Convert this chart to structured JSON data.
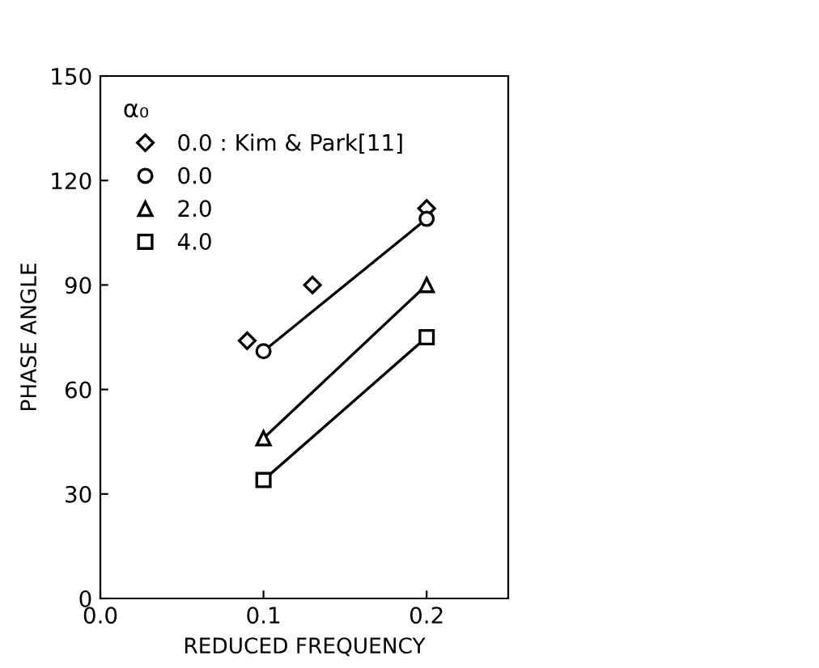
{
  "chart_data": {
    "type": "line",
    "xlabel": "REDUCED FREQUENCY",
    "ylabel": "PHASE ANGLE",
    "legend_title": "α₀",
    "legend": "top left",
    "grid": false,
    "xlim": [
      0.0,
      0.25
    ],
    "xticks": [
      {
        "value": 0.0,
        "label": "0.0"
      },
      {
        "value": 0.1,
        "label": "0.1"
      },
      {
        "value": 0.2,
        "label": "0.2"
      }
    ],
    "ylim": [
      0,
      150
    ],
    "yticks": [
      0,
      30,
      60,
      90,
      120,
      150
    ],
    "series": [
      {
        "name": "0.0 : Kim & Park[11]",
        "type": "scatter",
        "marker": "diamond",
        "color": "#000000",
        "x": [
          0.09,
          0.13,
          0.2
        ],
        "values": [
          74,
          90,
          112
        ]
      },
      {
        "name": "0.0",
        "marker": "circle",
        "color": "#000000",
        "x": [
          0.1,
          0.2
        ],
        "values": [
          71,
          109
        ]
      },
      {
        "name": "2.0",
        "marker": "triangle",
        "color": "#000000",
        "x": [
          0.1,
          0.2
        ],
        "values": [
          46,
          90
        ]
      },
      {
        "name": "4.0",
        "marker": "square",
        "color": "#000000",
        "x": [
          0.1,
          0.2
        ],
        "values": [
          34,
          75
        ]
      }
    ]
  }
}
